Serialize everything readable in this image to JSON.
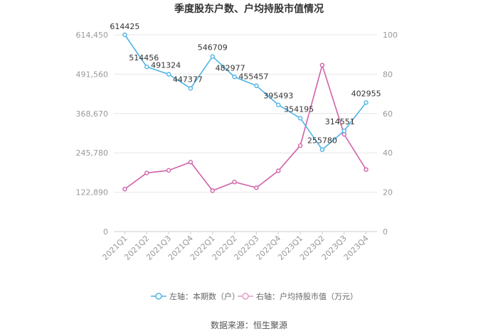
{
  "chart_data": {
    "type": "line",
    "title": "季度股东户数、户均持股市值情况",
    "categories": [
      "2021Q1",
      "2021Q2",
      "2021Q3",
      "2021Q4",
      "2022Q1",
      "2022Q2",
      "2022Q3",
      "2022Q4",
      "2023Q1",
      "2023Q2",
      "2023Q3",
      "2023Q4"
    ],
    "left_axis": {
      "ticks": [
        "0",
        "122,890",
        "245,780",
        "368,670",
        "491,560",
        "614,450"
      ],
      "ylim": [
        0,
        614450
      ]
    },
    "right_axis": {
      "ticks": [
        "0",
        "20",
        "40",
        "60",
        "80",
        "100"
      ],
      "ylim": [
        0,
        100
      ]
    },
    "series": [
      {
        "name": "左轴：本期数（户）",
        "axis": "left",
        "color": "#4fb3e6",
        "values": [
          614425,
          514456,
          491324,
          447377,
          546709,
          482977,
          455457,
          395493,
          354195,
          255780,
          314551,
          402955
        ],
        "labels": [
          "614425",
          "514456",
          "491324",
          "447377",
          "546709",
          "482977",
          "455457",
          "395493",
          "354195",
          "255780",
          "314551",
          "402955"
        ]
      },
      {
        "name": "右轴：户均持股市值（万元）",
        "axis": "right",
        "color": "#d062a8",
        "values": [
          21.6,
          29.8,
          31.1,
          35.3,
          20.8,
          25.2,
          22.3,
          30.9,
          43.7,
          84.6,
          49.4,
          31.5
        ]
      }
    ],
    "grid": "horizontal",
    "legend_position": "bottom"
  },
  "footer": {
    "source": "数据来源：恒生聚源"
  }
}
